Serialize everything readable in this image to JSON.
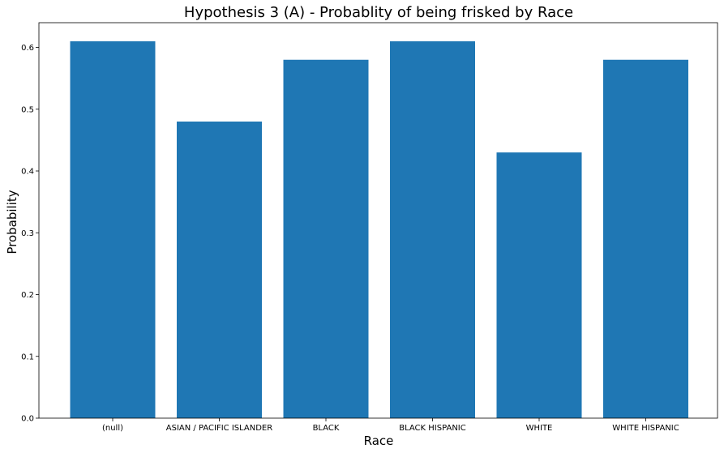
{
  "chart_data": {
    "type": "bar",
    "title": "Hypothesis 3 (A) - Probablity of being frisked by Race",
    "xlabel": "Race",
    "ylabel": "Probability",
    "categories": [
      "(null)",
      "ASIAN / PACIFIC ISLANDER",
      "BLACK",
      "BLACK HISPANIC",
      "WHITE",
      "WHITE HISPANIC"
    ],
    "values": [
      0.61,
      0.48,
      0.58,
      0.61,
      0.43,
      0.58
    ],
    "ylim": [
      0,
      0.64
    ],
    "yticks": [
      "0.0",
      "0.1",
      "0.2",
      "0.3",
      "0.4",
      "0.5",
      "0.6"
    ],
    "grid": false,
    "bar_color": "#1f77b4"
  }
}
